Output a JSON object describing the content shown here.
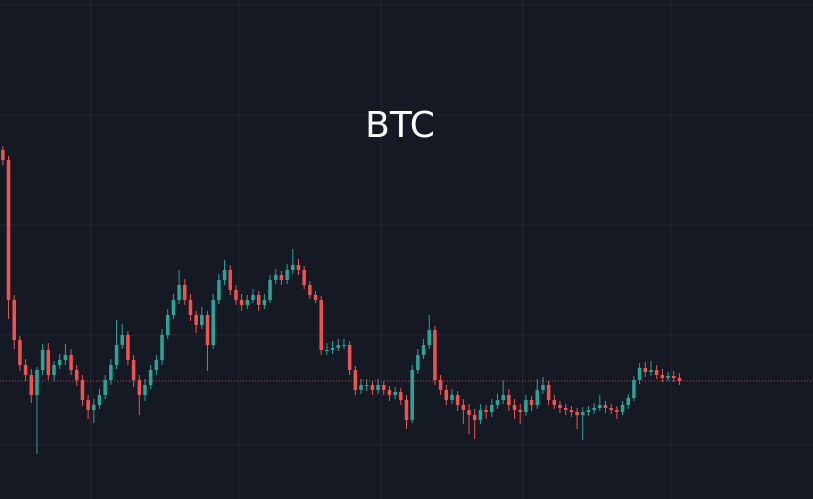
{
  "chart_data": {
    "type": "candlestick",
    "title": "BTC",
    "candles": [
      [
        349,
        353,
        334,
        339
      ],
      [
        339,
        343,
        180,
        199
      ],
      [
        199,
        204,
        150,
        159
      ],
      [
        159,
        163,
        128,
        134
      ],
      [
        134,
        140,
        118,
        124
      ],
      [
        124,
        130,
        96,
        104
      ],
      [
        104,
        132,
        45,
        129
      ],
      [
        129,
        155,
        124,
        149
      ],
      [
        149,
        156,
        119,
        124
      ],
      [
        124,
        138,
        118,
        134
      ],
      [
        134,
        145,
        130,
        139
      ],
      [
        139,
        155,
        134,
        144
      ],
      [
        144,
        150,
        124,
        129
      ],
      [
        129,
        134,
        113,
        119
      ],
      [
        119,
        124,
        93,
        99
      ],
      [
        99,
        104,
        80,
        89
      ],
      [
        89,
        100,
        76,
        94
      ],
      [
        94,
        110,
        90,
        104
      ],
      [
        104,
        124,
        100,
        119
      ],
      [
        119,
        140,
        114,
        134
      ],
      [
        134,
        179,
        130,
        154
      ],
      [
        154,
        175,
        150,
        164
      ],
      [
        164,
        168,
        134,
        139
      ],
      [
        139,
        144,
        112,
        119
      ],
      [
        119,
        124,
        84,
        104
      ],
      [
        104,
        120,
        98,
        114
      ],
      [
        114,
        134,
        110,
        129
      ],
      [
        129,
        144,
        124,
        139
      ],
      [
        139,
        170,
        134,
        164
      ],
      [
        164,
        190,
        160,
        184
      ],
      [
        184,
        205,
        180,
        199
      ],
      [
        199,
        229,
        195,
        214
      ],
      [
        214,
        220,
        194,
        199
      ],
      [
        199,
        205,
        178,
        184
      ],
      [
        184,
        188,
        166,
        174
      ],
      [
        174,
        192,
        170,
        184
      ],
      [
        184,
        188,
        128,
        154
      ],
      [
        154,
        205,
        150,
        199
      ],
      [
        199,
        225,
        195,
        219
      ],
      [
        219,
        239,
        214,
        229
      ],
      [
        229,
        234,
        204,
        209
      ],
      [
        209,
        214,
        194,
        199
      ],
      [
        199,
        205,
        188,
        194
      ],
      [
        194,
        204,
        190,
        199
      ],
      [
        199,
        210,
        196,
        204
      ],
      [
        204,
        208,
        188,
        194
      ],
      [
        194,
        205,
        190,
        199
      ],
      [
        199,
        224,
        196,
        219
      ],
      [
        219,
        230,
        215,
        224
      ],
      [
        224,
        228,
        214,
        219
      ],
      [
        219,
        235,
        215,
        229
      ],
      [
        229,
        250,
        225,
        234
      ],
      [
        234,
        240,
        224,
        229
      ],
      [
        229,
        233,
        210,
        214
      ],
      [
        214,
        218,
        200,
        204
      ],
      [
        204,
        208,
        196,
        199
      ],
      [
        199,
        203,
        144,
        149
      ],
      [
        149,
        156,
        144,
        149
      ],
      [
        149,
        158,
        145,
        151
      ],
      [
        151,
        160,
        148,
        154
      ],
      [
        154,
        160,
        150,
        154
      ],
      [
        154,
        158,
        124,
        129
      ],
      [
        129,
        133,
        104,
        109
      ],
      [
        109,
        120,
        105,
        114
      ],
      [
        114,
        120,
        108,
        114
      ],
      [
        114,
        118,
        104,
        109
      ],
      [
        109,
        120,
        105,
        114
      ],
      [
        114,
        118,
        104,
        109
      ],
      [
        109,
        113,
        98,
        104
      ],
      [
        104,
        112,
        100,
        107
      ],
      [
        107,
        111,
        94,
        99
      ],
      [
        99,
        104,
        70,
        79
      ],
      [
        79,
        134,
        76,
        129
      ],
      [
        129,
        150,
        125,
        144
      ],
      [
        144,
        160,
        140,
        154
      ],
      [
        154,
        184,
        150,
        169
      ],
      [
        169,
        173,
        114,
        119
      ],
      [
        119,
        124,
        104,
        109
      ],
      [
        109,
        114,
        94,
        99
      ],
      [
        99,
        110,
        95,
        104
      ],
      [
        104,
        108,
        88,
        94
      ],
      [
        94,
        100,
        75,
        89
      ],
      [
        89,
        95,
        65,
        84
      ],
      [
        84,
        90,
        60,
        79
      ],
      [
        79,
        95,
        75,
        89
      ],
      [
        89,
        94,
        80,
        87
      ],
      [
        87,
        100,
        82,
        94
      ],
      [
        94,
        105,
        90,
        99
      ],
      [
        99,
        119,
        95,
        104
      ],
      [
        104,
        110,
        88,
        94
      ],
      [
        94,
        100,
        80,
        89
      ],
      [
        89,
        95,
        75,
        87
      ],
      [
        87,
        104,
        83,
        99
      ],
      [
        99,
        103,
        88,
        94
      ],
      [
        94,
        120,
        90,
        109
      ],
      [
        109,
        122,
        105,
        114
      ],
      [
        114,
        118,
        94,
        99
      ],
      [
        99,
        104,
        90,
        94
      ],
      [
        94,
        98,
        86,
        91
      ],
      [
        91,
        95,
        84,
        89
      ],
      [
        89,
        93,
        82,
        87
      ],
      [
        87,
        91,
        70,
        84
      ],
      [
        84,
        92,
        59,
        87
      ],
      [
        87,
        93,
        83,
        89
      ],
      [
        89,
        96,
        85,
        91
      ],
      [
        91,
        104,
        88,
        94
      ],
      [
        94,
        98,
        86,
        91
      ],
      [
        91,
        95,
        85,
        89
      ],
      [
        89,
        93,
        80,
        87
      ],
      [
        87,
        98,
        84,
        94
      ],
      [
        94,
        105,
        90,
        101
      ],
      [
        101,
        123,
        98,
        119
      ],
      [
        119,
        136,
        115,
        131
      ],
      [
        131,
        137,
        122,
        127
      ],
      [
        127,
        138,
        123,
        129
      ],
      [
        129,
        134,
        120,
        124
      ],
      [
        124,
        130,
        117,
        121
      ],
      [
        121,
        127,
        118,
        123
      ],
      [
        123,
        128,
        117,
        121
      ],
      [
        121,
        126,
        114,
        118
      ]
    ],
    "colors": {
      "up": "#26a69a",
      "down": "#ef5350"
    },
    "xlim": [
      0,
      143
    ],
    "ylim": [
      0,
      499
    ],
    "xticks": [
      16,
      42,
      67,
      92,
      118
    ],
    "yticks": [
      54,
      164,
      274,
      384,
      494
    ],
    "grid": true
  }
}
